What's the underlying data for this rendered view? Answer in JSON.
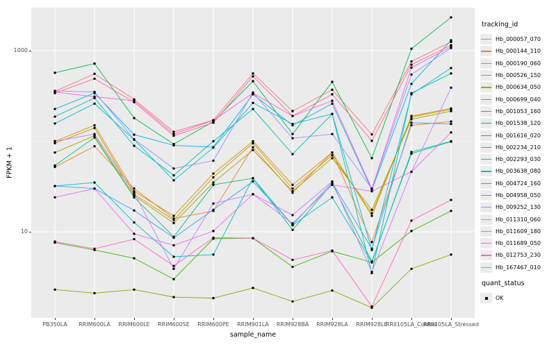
{
  "chart_data": {
    "type": "line",
    "title": "",
    "xlabel": "sample_name",
    "ylabel": "FPKM + 1",
    "y_scale": "log10",
    "y_ticks": [
      {
        "label": "1000",
        "value": 1000
      },
      {
        "label": "10",
        "value": 10
      }
    ],
    "y_minor_gridlines": [
      100
    ],
    "ylim": [
      1.15,
      2900
    ],
    "grid": true,
    "legend_position": "right",
    "legend_title": "tracking_id",
    "panel_background": "#EBEBEB",
    "gridline_color": "#FFFFFF",
    "point_color": "#000000",
    "x": [
      "PB350LA",
      "RRIM600LA",
      "RRIM600LE",
      "RRIM600SE",
      "RRIM600PE",
      "RRIM901LA",
      "RRIM928BA",
      "RRIM928LA",
      "RRIM928LE",
      "RRII105LA_Control",
      "RRII105LA_Stressed"
    ],
    "series": [
      {
        "name": "Hb_000057_070",
        "color": "#F8766D",
        "values": [
          355,
          555,
          290,
          127,
          171,
          560,
          215,
          370,
          119,
          760,
          1250
        ]
      },
      {
        "name": "Hb_000144_110",
        "color": "#EA8331",
        "values": [
          52,
          88,
          30,
          14,
          17,
          86,
          27,
          75,
          7.7,
          150,
          165
        ]
      },
      {
        "name": "Hb_000190_060",
        "color": "#D89000",
        "values": [
          100,
          150,
          28,
          15,
          44,
          100,
          33,
          75,
          15,
          190,
          230
        ]
      },
      {
        "name": "Hb_000526_150",
        "color": "#C09B00",
        "values": [
          95,
          140,
          26,
          13.5,
          40,
          95,
          30,
          70,
          16,
          185,
          225
        ]
      },
      {
        "name": "Hb_000634_050",
        "color": "#A3A500",
        "values": [
          75,
          115,
          25,
          12.5,
          35,
          80,
          28,
          65,
          17.5,
          175,
          215
        ]
      },
      {
        "name": "Hb_000699_040",
        "color": "#7CAE00",
        "values": [
          2.3,
          2.1,
          2.3,
          1.9,
          1.85,
          2.4,
          1.7,
          2.25,
          1.45,
          3.9,
          5.6
        ]
      },
      {
        "name": "Hb_001053_160",
        "color": "#39B600",
        "values": [
          7.6,
          6.3,
          5.1,
          3.0,
          8.4,
          8.5,
          4.1,
          6.1,
          4.6,
          10.2,
          17
        ]
      },
      {
        "name": "Hb_001538_120",
        "color": "#00BB4E",
        "values": [
          570,
          720,
          180,
          93,
          165,
          460,
          120,
          452,
          65,
          1050,
          2330
        ]
      },
      {
        "name": "Hb_001616_020",
        "color": "#00BF7D",
        "values": [
          54,
          110,
          24,
          8.8,
          33,
          39,
          10.5,
          34,
          4.7,
          73,
          99
        ]
      },
      {
        "name": "Hb_002234_210",
        "color": "#00C1A3",
        "values": [
          187,
          300,
          89,
          42,
          100,
          227,
          72,
          200,
          3.5,
          340,
          560
        ]
      },
      {
        "name": "Hb_002293_030",
        "color": "#00BFC4",
        "values": [
          32,
          35,
          12.7,
          5.3,
          5.6,
          39,
          11.8,
          24,
          4.6,
          76,
          100
        ]
      },
      {
        "name": "Hb_003638_080",
        "color": "#00BAE0",
        "values": [
          157,
          260,
          104,
          37,
          85,
          265,
          155,
          200,
          6.3,
          330,
          643
        ]
      },
      {
        "name": "Hb_004724_160",
        "color": "#00B0F6",
        "values": [
          227,
          340,
          118,
          90,
          86,
          330,
          150,
          260,
          29,
          430,
          1300
        ]
      },
      {
        "name": "Hb_004958_050",
        "color": "#35A2FF",
        "values": [
          32,
          30,
          17.2,
          8.6,
          17.5,
          36,
          12,
          35,
          6.5,
          160,
          155
        ]
      },
      {
        "name": "Hb_009252_130",
        "color": "#9590FF",
        "values": [
          360,
          350,
          105,
          50,
          61,
          345,
          108,
          120,
          30,
          545,
          1070
        ]
      },
      {
        "name": "Hb_011310_060",
        "color": "#C77CFF",
        "values": [
          100,
          120,
          27,
          3.9,
          20.5,
          26,
          15.3,
          36,
          3.6,
          46,
          390
        ]
      },
      {
        "name": "Hb_011609_180",
        "color": "#E76BF3",
        "values": [
          24,
          30,
          9.5,
          7.1,
          10.2,
          26,
          12.4,
          33,
          28,
          46,
          125
        ]
      },
      {
        "name": "Hb_011689_050",
        "color": "#FA62DB",
        "values": [
          350,
          310,
          280,
          120,
          170,
          340,
          190,
          280,
          30,
          650,
          1100
        ]
      },
      {
        "name": "Hb_012753_230",
        "color": "#FF62BC",
        "values": [
          7.8,
          6.5,
          8.3,
          4.2,
          8.6,
          8.5,
          4.9,
          6.2,
          1.5,
          13.3,
          22.5
        ]
      },
      {
        "name": "Hb_167467_010",
        "color": "#FF6A98",
        "values": [
          340,
          490,
          270,
          115,
          160,
          520,
          190,
          330,
          101,
          700,
          1150
        ]
      }
    ],
    "quant_status": {
      "title": "quant_status",
      "items": [
        {
          "label": "OK",
          "marker": "point",
          "color": "#000000"
        }
      ]
    }
  }
}
